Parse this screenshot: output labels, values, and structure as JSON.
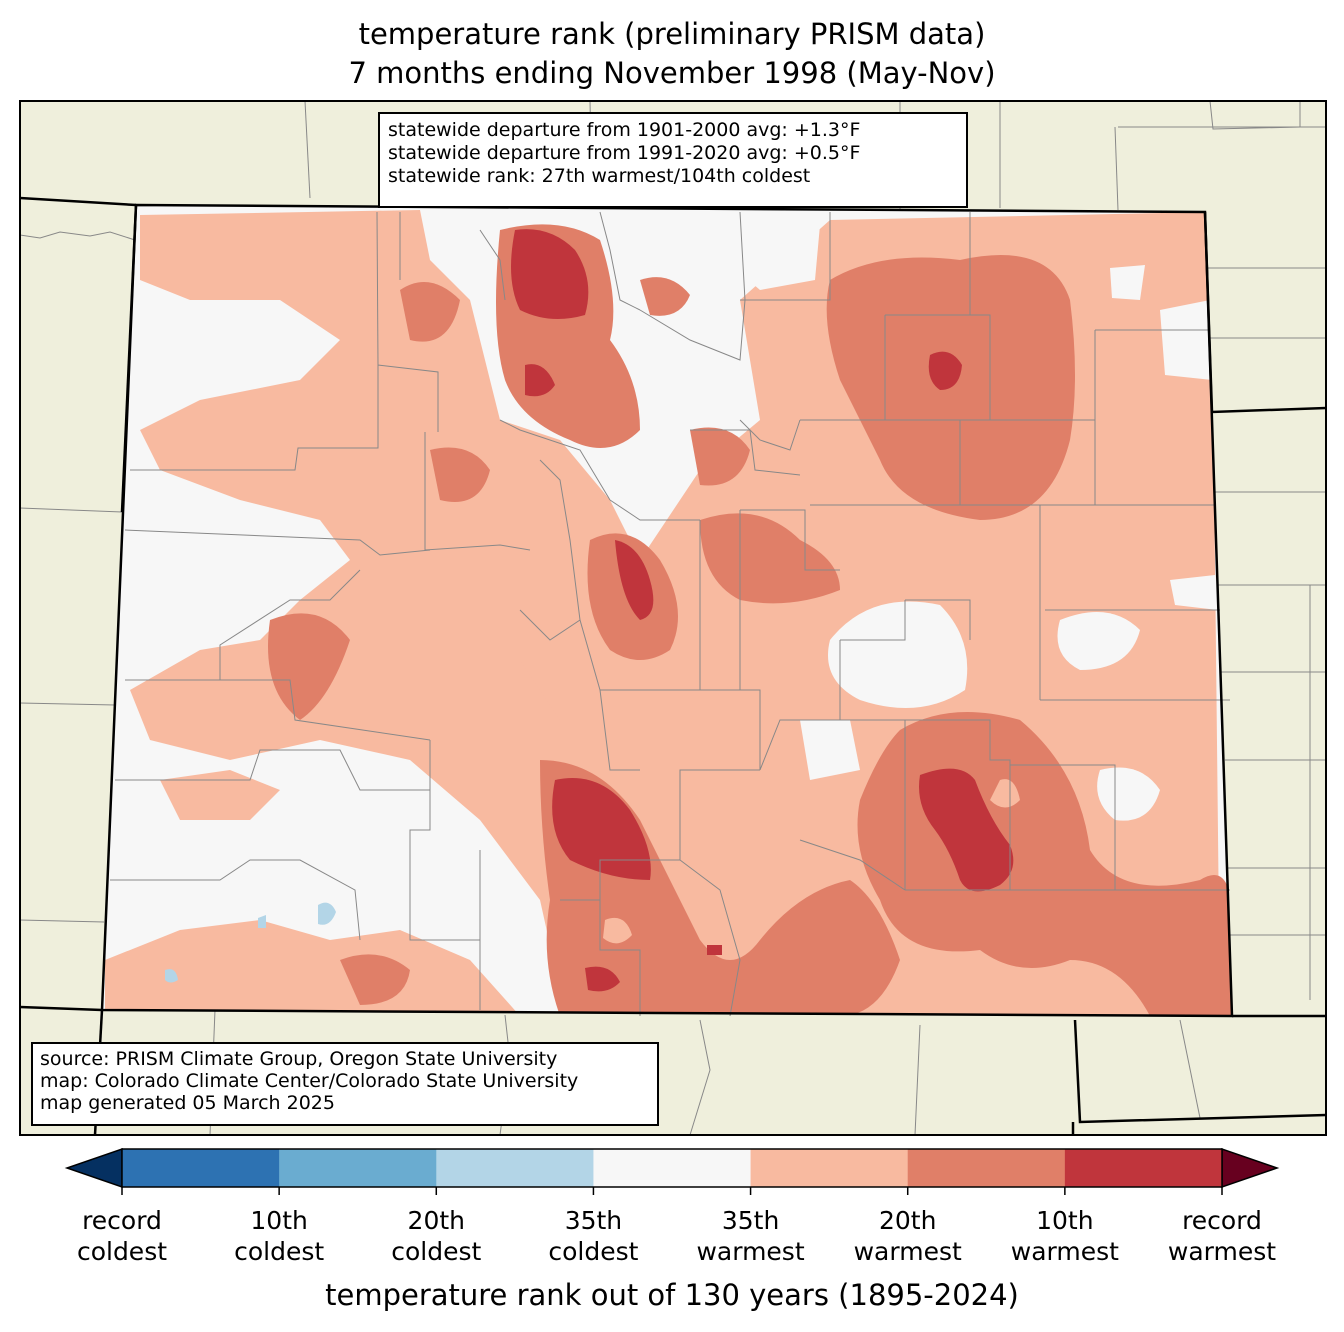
{
  "title": {
    "line1": "temperature rank (preliminary PRISM data)",
    "line2": "7 months ending November 1998 (May-Nov)"
  },
  "stats_box": {
    "line1": "statewide departure from 1901-2000 avg: +1.3°F",
    "line2": "statewide departure from 1991-2020 avg: +0.5°F",
    "line3": "statewide rank: 27th warmest/104th coldest"
  },
  "source_box": {
    "line1": "source: PRISM Climate Group, Oregon State University",
    "line2": "map: Colorado Climate Center/Colorado State University",
    "line3": "map generated 05 March 2025"
  },
  "colorbar": {
    "title": "temperature rank out of 130 years (1895-2024)",
    "under_color": "#053061",
    "over_color": "#67001f",
    "segments": [
      "#2d72b2",
      "#6aacd0",
      "#b3d5e7",
      "#f7f7f7",
      "#f8baa0",
      "#e07f68",
      "#c0353c"
    ],
    "ticks": [
      {
        "line1": "record",
        "line2": "coldest"
      },
      {
        "line1": "10th",
        "line2": "coldest"
      },
      {
        "line1": "20th",
        "line2": "coldest"
      },
      {
        "line1": "35th",
        "line2": "coldest"
      },
      {
        "line1": "35th",
        "line2": "warmest"
      },
      {
        "line1": "20th",
        "line2": "warmest"
      },
      {
        "line1": "10th",
        "line2": "warmest"
      },
      {
        "line1": "record",
        "line2": "warmest"
      }
    ]
  },
  "map_colors": {
    "land_outside": "#efefdc",
    "near_normal": "#f7f7f7",
    "warm_35": "#f8baa0",
    "warm_20": "#e07f68",
    "warm_10": "#c0353c",
    "cool_35": "#b3d5e7",
    "county_lines": "#888888",
    "state_lines": "#000000"
  }
}
